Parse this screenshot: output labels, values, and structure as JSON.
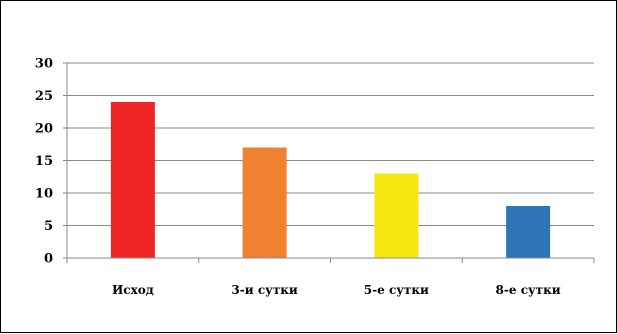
{
  "chart_data": {
    "type": "bar",
    "title": "",
    "xlabel": "",
    "ylabel": "",
    "categories": [
      "Исход",
      "3-и сутки",
      "5-е сутки",
      "8-е сутки"
    ],
    "values": [
      24,
      17,
      13,
      8
    ],
    "bar_colors": [
      "#ee2524",
      "#ef8130",
      "#f6e70f",
      "#2e75b6"
    ],
    "ylim": [
      0,
      30
    ],
    "yticks": [
      0,
      5,
      10,
      15,
      20,
      25,
      30
    ],
    "grid": true,
    "legend": "none"
  }
}
